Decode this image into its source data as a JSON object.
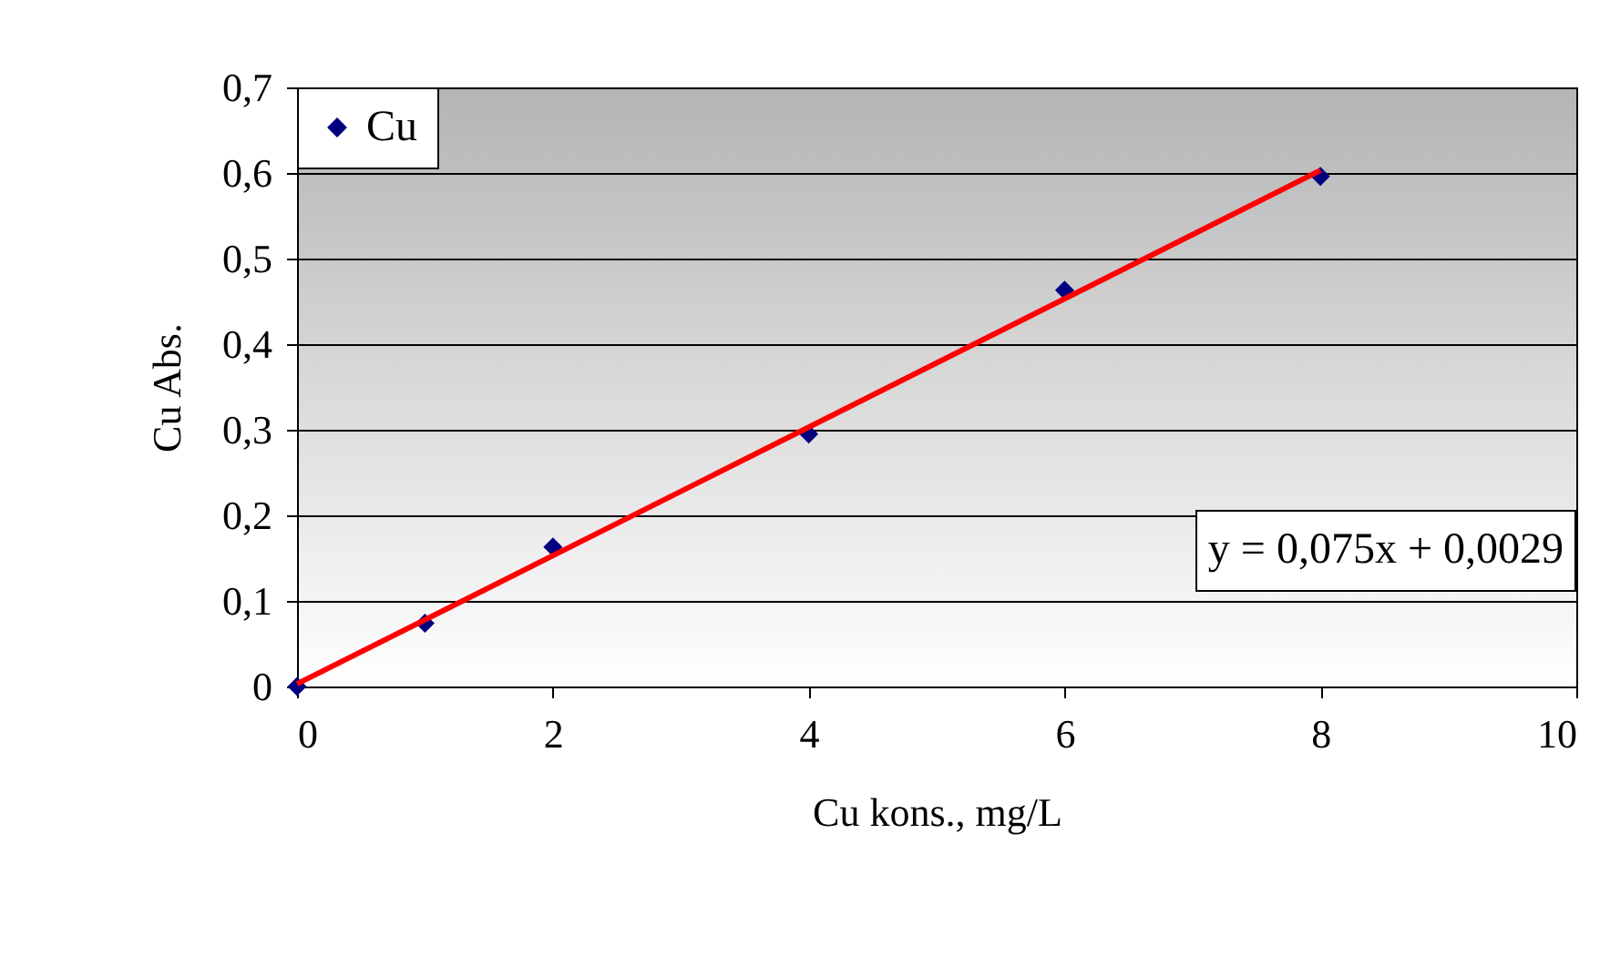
{
  "chart_data": {
    "type": "scatter",
    "xlabel": "Cu kons., mg/L",
    "ylabel": "Cu Abs.",
    "xlim": [
      0,
      10
    ],
    "xticks": [
      0,
      2,
      4,
      6,
      8,
      10
    ],
    "ylim": [
      0,
      0.7
    ],
    "yticks": [
      0,
      {
        "value": 0.1,
        "label": "0,1"
      },
      {
        "value": 0.2,
        "label": "0,2"
      },
      {
        "value": 0.3,
        "label": "0,3"
      },
      {
        "value": 0.4,
        "label": "0,4"
      },
      {
        "value": 0.5,
        "label": "0,5"
      },
      {
        "value": 0.6,
        "label": "0,6"
      },
      {
        "value": 0.7,
        "label": "0,7"
      }
    ],
    "grid": "y",
    "legend": "top left",
    "marker": "diamond",
    "series": [
      {
        "name": "Cu",
        "color": "#000080",
        "x": [
          0,
          1,
          2,
          4,
          6,
          8
        ],
        "values": [
          0,
          0.074,
          0.163,
          0.295,
          0.463,
          0.596
        ]
      },
      {
        "type": "line",
        "color": "#ff0000",
        "marker": "none",
        "line_style": "solid",
        "x": [
          0,
          8
        ],
        "values": [
          0.003,
          0.603
        ]
      }
    ],
    "annotations": [
      "y = 0,075x + 0,0029"
    ]
  }
}
